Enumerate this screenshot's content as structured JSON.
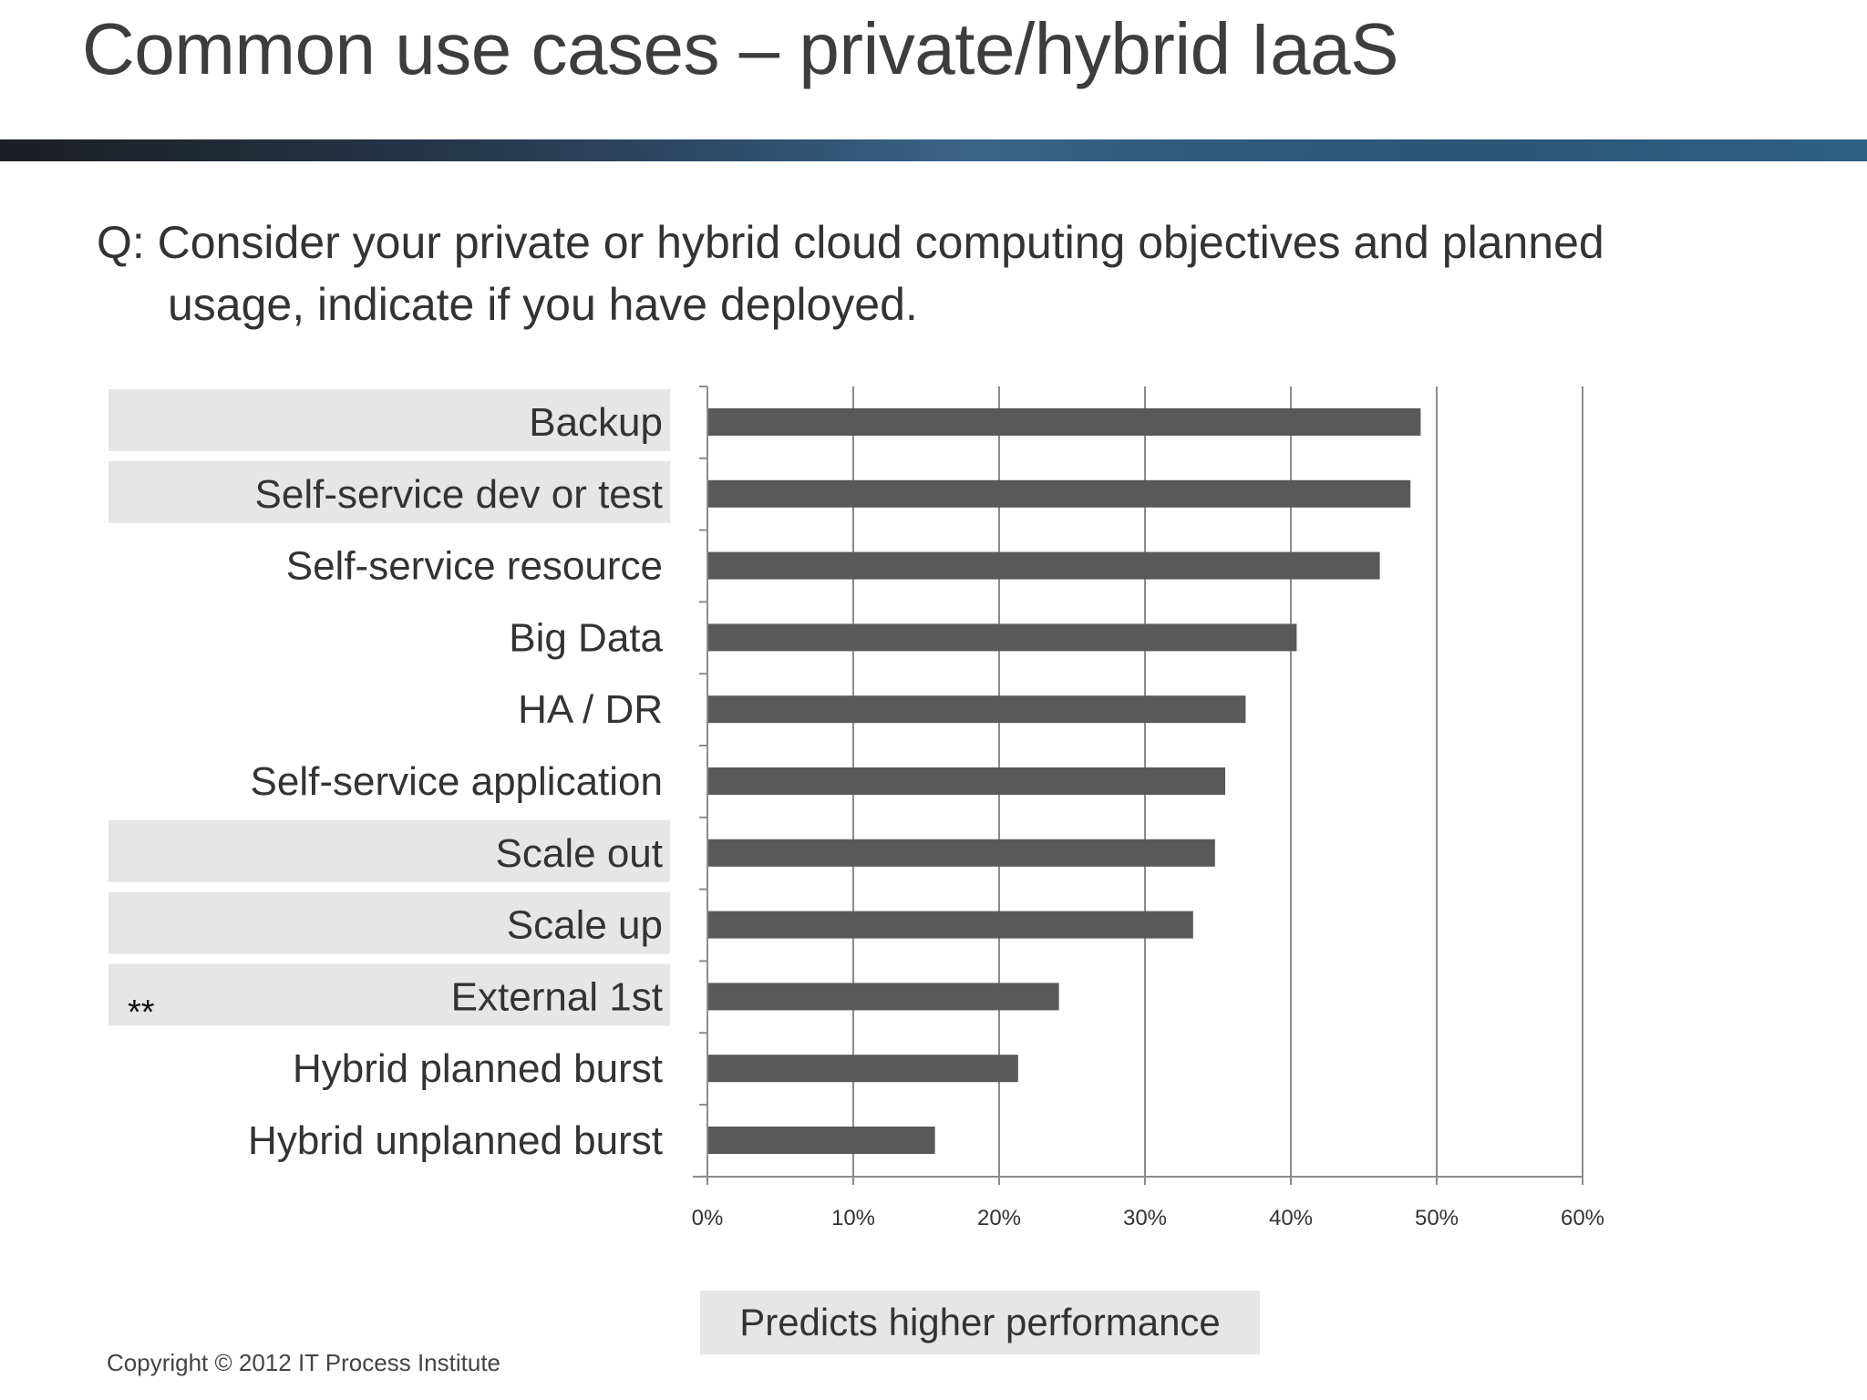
{
  "slide": {
    "title": "Common use cases – private/hybrid IaaS",
    "question_line1": "Q: Consider your private or hybrid cloud computing objectives and planned",
    "question_line2": "usage, indicate if you have deployed.",
    "legend_label": "Predicts higher performance",
    "note_mark": "**",
    "copyright": "Copyright © 2012 IT Process Institute"
  },
  "chart_data": {
    "type": "bar",
    "orientation": "horizontal",
    "categories": [
      "Backup",
      "Self-service dev or test",
      "Self-service resource",
      "Big Data",
      "HA / DR",
      "Self-service application",
      "Scale out",
      "Scale up",
      "External 1st",
      "Hybrid planned burst",
      "Hybrid unplanned burst"
    ],
    "values": [
      48.9,
      48.2,
      46.1,
      40.4,
      36.9,
      35.5,
      34.8,
      33.3,
      24.1,
      21.3,
      15.6
    ],
    "highlighted": [
      "Backup",
      "Self-service dev or test",
      "Scale out",
      "Scale up",
      "External 1st"
    ],
    "x_ticks": [
      "0%",
      "10%",
      "20%",
      "30%",
      "40%",
      "50%",
      "60%"
    ],
    "xlim": [
      0,
      60
    ],
    "grid": true,
    "bar_color": "#595959",
    "highlight_color": "#e6e6e6"
  }
}
